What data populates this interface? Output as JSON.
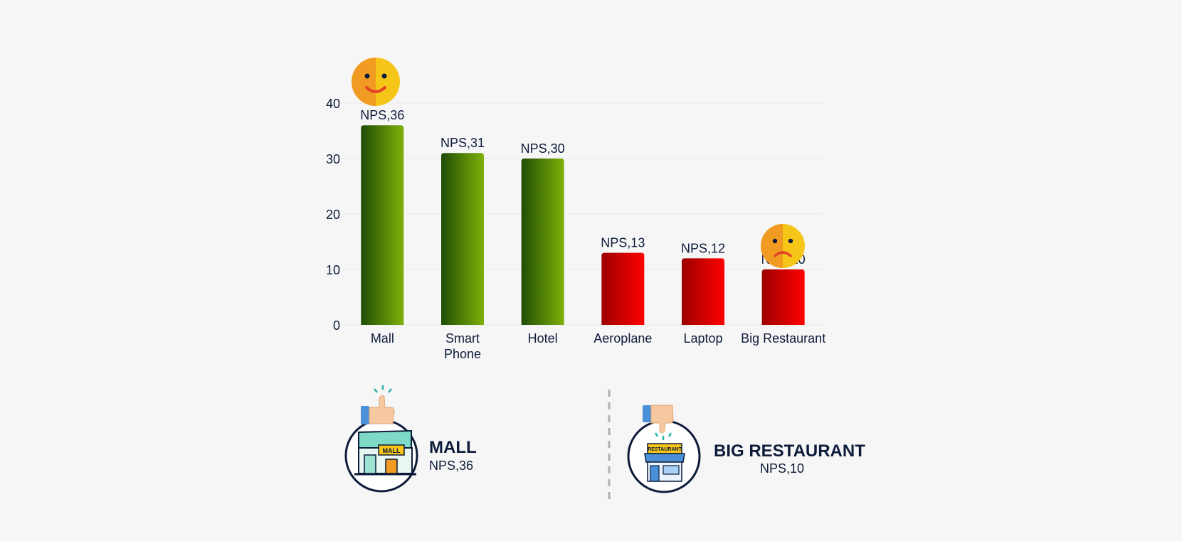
{
  "chart_data": {
    "type": "bar",
    "categories": [
      "Mall",
      "Smart\nPhone",
      "Hotel",
      "Aeroplane",
      "Laptop",
      "Big Restaurant"
    ],
    "values": [
      36,
      31,
      30,
      13,
      12,
      10
    ],
    "data_labels": [
      "NPS,36",
      "NPS,31",
      "NPS,30",
      "NPS,13",
      "NPS,12",
      "NPS,10"
    ],
    "bar_colors": [
      "green",
      "green",
      "green",
      "red",
      "red",
      "red"
    ],
    "ylim": [
      0,
      40
    ],
    "yticks": [
      0,
      10,
      20,
      30,
      40
    ],
    "title": "",
    "xlabel": "",
    "ylabel": "",
    "grid": true
  },
  "colors": {
    "green_dark": "#1f4d05",
    "green_light": "#7fb10a",
    "red_dark": "#9c0000",
    "red_light": "#ff0000",
    "navy": "#0d1b3a"
  },
  "summary": {
    "best": {
      "title": "MALL",
      "value": "NPS,36",
      "icon": "mall-icon",
      "badge": "thumbs-up-icon"
    },
    "worst": {
      "title": "BIG RESTAURANT",
      "value": "NPS,10",
      "icon": "restaurant-icon",
      "badge": "thumbs-down-icon"
    }
  }
}
